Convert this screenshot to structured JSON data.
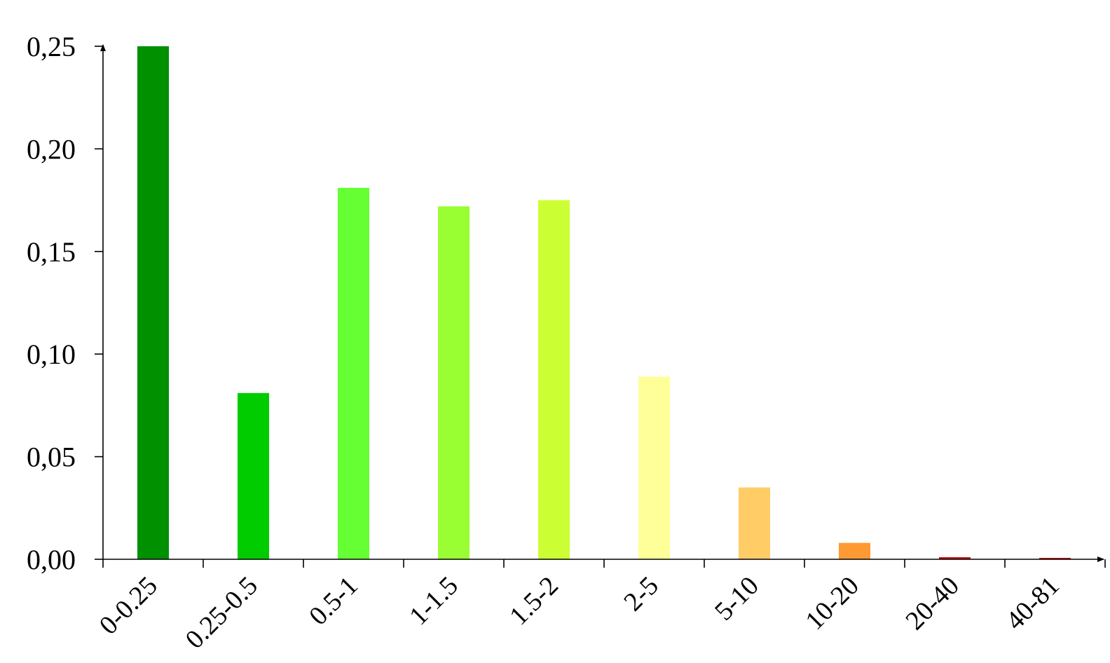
{
  "chart_data": {
    "type": "bar",
    "title": "",
    "xlabel": "",
    "ylabel": "",
    "categories": [
      "0-0.25",
      "0.25-0.5",
      "0.5-1",
      "1-1.5",
      "1.5-2",
      "2-5",
      "5-10",
      "10-20",
      "20-40",
      "40-81"
    ],
    "values": [
      0.25,
      0.081,
      0.181,
      0.172,
      0.175,
      0.089,
      0.035,
      0.008,
      0.001,
      0.0005
    ],
    "colors": [
      "#009000",
      "#00cc00",
      "#66ff33",
      "#99ff33",
      "#ccff33",
      "#ffff99",
      "#ffcc66",
      "#ff9933",
      "#cc0000",
      "#cc0000"
    ],
    "ylim": [
      0,
      0.25
    ],
    "yticks": [
      0,
      0.05,
      0.1,
      0.15,
      0.2,
      0.25
    ],
    "ytick_labels": [
      "0,00",
      "0,05",
      "0,10",
      "0,15",
      "0,20",
      "0,25"
    ],
    "grid": false,
    "legend": "none"
  }
}
